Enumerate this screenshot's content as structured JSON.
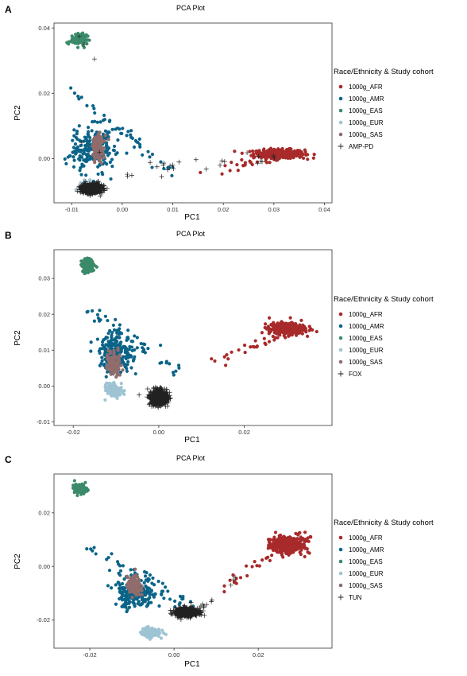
{
  "chart_data": [
    {
      "type": "scatter",
      "panel_label": "A",
      "title": "PCA Plot",
      "xlabel": "PC1",
      "ylabel": "PC2",
      "xlim": [
        -0.0135,
        0.0415
      ],
      "ylim": [
        -0.0135,
        0.0415
      ],
      "xticks": [
        -0.01,
        0.0,
        0.01,
        0.02,
        0.03,
        0.04
      ],
      "xtick_labels": [
        "-0.01",
        "0.00",
        "0.01",
        "0.02",
        "0.03",
        "0.04"
      ],
      "yticks": [
        0.0,
        0.02,
        0.04
      ],
      "ytick_labels": [
        "0.00",
        "0.02",
        "0.04"
      ],
      "grid": false,
      "legend": {
        "title": "Race/Ethnicity & Study cohort",
        "placement": "right"
      },
      "series": [
        {
          "name": "1000g_AFR",
          "marker": "point",
          "color": "#a82a2a",
          "cluster": {
            "center": [
              0.031,
              0.0015
            ],
            "spread": [
              0.0042,
              0.0011
            ],
            "n": 330,
            "tail": {
              "from": [
                0.015,
                -0.004
              ],
              "to": [
                0.036,
                0.002
              ],
              "n": 30
            }
          }
        },
        {
          "name": "1000g_AMR",
          "marker": "point",
          "color": "#0b6488",
          "cluster": {
            "center": [
              -0.006,
              0.003
            ],
            "spread": [
              0.0035,
              0.0058
            ],
            "n": 230,
            "tail": {
              "from": [
                -0.011,
                0.022
              ],
              "to": [
                0.01,
                -0.004
              ],
              "n": 45
            }
          }
        },
        {
          "name": "1000g_EAS",
          "marker": "point",
          "color": "#3b8a6a",
          "cluster": {
            "center": [
              -0.0085,
              0.0365
            ],
            "spread": [
              0.0012,
              0.0015
            ],
            "n": 150
          }
        },
        {
          "name": "1000g_EUR",
          "marker": "point",
          "color": "#9ec4d4",
          "cluster": {
            "center": [
              -0.0072,
              -0.0082
            ],
            "spread": [
              0.001,
              0.0012
            ],
            "n": 90
          }
        },
        {
          "name": "1000g_SAS",
          "marker": "point",
          "color": "#906c6c",
          "cluster": {
            "center": [
              -0.0048,
              0.0035
            ],
            "spread": [
              0.001,
              0.0032
            ],
            "n": 130
          }
        },
        {
          "name": "AMP-PD",
          "marker": "plus",
          "color": "#222222",
          "cluster": {
            "center": [
              -0.006,
              -0.0092
            ],
            "spread": [
              0.0016,
              0.0011
            ],
            "n": 900,
            "tail": {
              "from": [
                0.0,
                -0.0045
              ],
              "to": [
                0.03,
                0.001
              ],
              "n": 25
            },
            "extra": [
              [
                -0.0085,
                0.0375
              ],
              [
                -0.0075,
                0.035
              ],
              [
                -0.0055,
                0.0305
              ],
              [
                -0.008,
                0.005
              ],
              [
                -0.0045,
                0.002
              ]
            ]
          }
        }
      ]
    },
    {
      "type": "scatter",
      "panel_label": "B",
      "title": "PCA Plot",
      "xlabel": "PC1",
      "ylabel": "PC2",
      "xlim": [
        -0.0245,
        0.0405
      ],
      "ylim": [
        -0.011,
        0.038
      ],
      "xticks": [
        -0.02,
        0.0,
        0.02
      ],
      "xtick_labels": [
        "-0.02",
        "0.00",
        "0.02"
      ],
      "yticks": [
        -0.01,
        0.0,
        0.01,
        0.02,
        0.03
      ],
      "ytick_labels": [
        "-0.01",
        "0.00",
        "0.01",
        "0.02",
        "0.03"
      ],
      "grid": false,
      "legend": {
        "title": "Race/Ethnicity & Study cohort",
        "placement": "right"
      },
      "series": [
        {
          "name": "1000g_AFR",
          "marker": "point",
          "color": "#a82a2a",
          "cluster": {
            "center": [
              0.03,
              0.016
            ],
            "spread": [
              0.0035,
              0.0014
            ],
            "n": 330,
            "tail": {
              "from": [
                0.013,
                0.006
              ],
              "to": [
                0.032,
                0.0165
              ],
              "n": 30
            }
          }
        },
        {
          "name": "1000g_AMR",
          "marker": "point",
          "color": "#0b6488",
          "cluster": {
            "center": [
              -0.01,
              0.009
            ],
            "spread": [
              0.0032,
              0.0045
            ],
            "n": 230,
            "tail": {
              "from": [
                -0.016,
                0.021
              ],
              "to": [
                0.005,
                0.004
              ],
              "n": 45
            }
          }
        },
        {
          "name": "1000g_EAS",
          "marker": "point",
          "color": "#3b8a6a",
          "cluster": {
            "center": [
              -0.0165,
              0.0335
            ],
            "spread": [
              0.0012,
              0.0015
            ],
            "n": 150
          }
        },
        {
          "name": "1000g_EUR",
          "marker": "point",
          "color": "#9ec4d4",
          "cluster": {
            "center": [
              -0.0105,
              -0.0012
            ],
            "spread": [
              0.0015,
              0.0016
            ],
            "n": 140
          }
        },
        {
          "name": "1000g_SAS",
          "marker": "point",
          "color": "#906c6c",
          "cluster": {
            "center": [
              -0.0105,
              0.0065
            ],
            "spread": [
              0.0012,
              0.0025
            ],
            "n": 140
          }
        },
        {
          "name": "FOX",
          "marker": "plus",
          "color": "#222222",
          "cluster": {
            "center": [
              0.0,
              -0.0032
            ],
            "spread": [
              0.0016,
              0.0016
            ],
            "n": 900
          }
        }
      ]
    },
    {
      "type": "scatter",
      "panel_label": "C",
      "title": "PCA Plot",
      "xlabel": "PC1",
      "ylabel": "PC2",
      "xlim": [
        -0.0285,
        0.0375
      ],
      "ylim": [
        -0.0305,
        0.0345
      ],
      "xticks": [
        -0.02,
        0.0,
        0.02
      ],
      "xtick_labels": [
        "-0.02",
        "0.00",
        "0.02"
      ],
      "yticks": [
        -0.02,
        0.0,
        0.02
      ],
      "ytick_labels": [
        "-0.02",
        "0.00",
        "0.02"
      ],
      "grid": false,
      "legend": {
        "title": "Race/Ethnicity & Study cohort",
        "placement": "right"
      },
      "series": [
        {
          "name": "1000g_AFR",
          "marker": "point",
          "color": "#a82a2a",
          "cluster": {
            "center": [
              0.027,
              0.008
            ],
            "spread": [
              0.0036,
              0.0025
            ],
            "n": 330,
            "tail": {
              "from": [
                0.013,
                -0.007
              ],
              "to": [
                0.032,
                0.013
              ],
              "n": 30
            }
          }
        },
        {
          "name": "1000g_AMR",
          "marker": "point",
          "color": "#0b6488",
          "cluster": {
            "center": [
              -0.009,
              -0.01
            ],
            "spread": [
              0.0042,
              0.0045
            ],
            "n": 230,
            "tail": {
              "from": [
                -0.021,
                0.008
              ],
              "to": [
                0.005,
                -0.016
              ],
              "n": 45
            }
          }
        },
        {
          "name": "1000g_EAS",
          "marker": "point",
          "color": "#3b8a6a",
          "cluster": {
            "center": [
              -0.0222,
              0.029
            ],
            "spread": [
              0.0012,
              0.0014
            ],
            "n": 150
          }
        },
        {
          "name": "1000g_EUR",
          "marker": "point",
          "color": "#9ec4d4",
          "cluster": {
            "center": [
              -0.0055,
              -0.0245
            ],
            "spread": [
              0.0018,
              0.0015
            ],
            "n": 140
          }
        },
        {
          "name": "1000g_SAS",
          "marker": "point",
          "color": "#906c6c",
          "cluster": {
            "center": [
              -0.0095,
              -0.0075
            ],
            "spread": [
              0.0013,
              0.003
            ],
            "n": 140
          }
        },
        {
          "name": "TUN",
          "marker": "plus",
          "color": "#222222",
          "cluster": {
            "center": [
              0.003,
              -0.017
            ],
            "spread": [
              0.0022,
              0.0012
            ],
            "n": 700,
            "tail": {
              "from": [
                0.0,
                -0.019
              ],
              "to": [
                0.009,
                -0.013
              ],
              "n": 20
            },
            "extra": [
              [
                0.014,
                -0.005
              ],
              [
                0.0135,
                -0.007
              ],
              [
                0.0145,
                -0.004
              ]
            ]
          }
        }
      ]
    }
  ]
}
